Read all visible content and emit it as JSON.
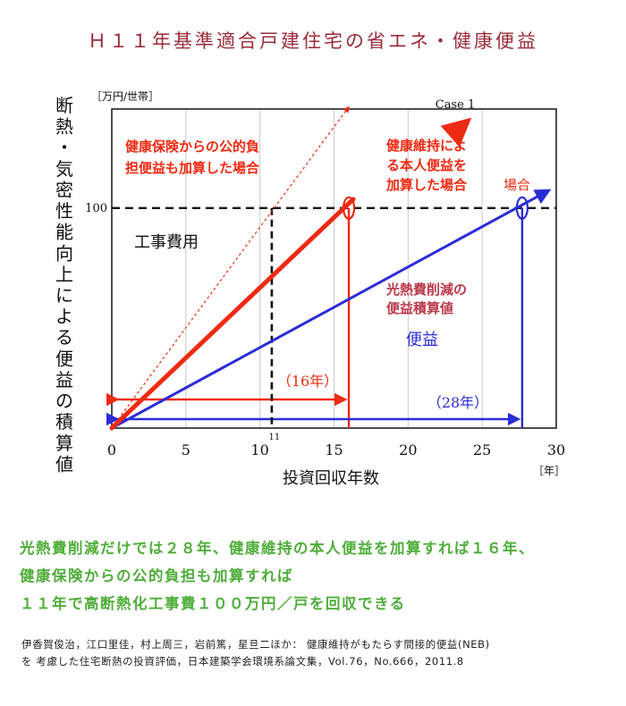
{
  "title": "Ｈ１１年基準適合戸建住宅の省エネ・健康便益",
  "chart_data": {
    "type": "line",
    "title": "Ｈ１１年基準適合戸建住宅の省エネ・健康便益",
    "ylabel": "断熱・気密性能向上による便益の積算値",
    "yunit": "［万円/世帯］",
    "xlabel": "投資回収年数",
    "xunit": "［年］",
    "xlim": [
      0,
      30
    ],
    "ylim": [
      0,
      145
    ],
    "xticks": [
      "0",
      "5",
      "10",
      "15",
      "20",
      "25",
      "30"
    ],
    "yticks": [
      "100"
    ],
    "extra_xtick": "11",
    "grid": "vertical",
    "series": [
      {
        "name": "",
        "color": "#2b2bd8",
        "style": "solid-arrow",
        "x": [
          0,
          29.5
        ],
        "y": [
          0,
          108
        ]
      },
      {
        "name": "",
        "color": "#ee2a12",
        "style": "solid-thick",
        "x": [
          0,
          16.3
        ],
        "y": [
          0,
          104
        ]
      },
      {
        "name": "",
        "color": "#ee2a12",
        "style": "dotted",
        "x": [
          0,
          16.0
        ],
        "y": [
          0,
          146
        ]
      },
      {
        "name": "",
        "color": "#ee2a12",
        "style": "arrow",
        "x": [
          23.7,
          24.1
        ],
        "y": [
          137,
          140
        ]
      }
    ],
    "reference_line": {
      "label": "工事費用",
      "y": 100,
      "color": "#111111"
    },
    "paybacks": [
      {
        "label": "（16年）",
        "x": 16,
        "color": "#ee2a12"
      },
      {
        "label": "（28年）",
        "x": 27.7,
        "color": "#2b2bd8"
      },
      {
        "label": "",
        "x": 10.8,
        "color": "#111111"
      }
    ],
    "annotations": {
      "case": "Case 1",
      "public_benefit": [
        "健康保険からの公的負",
        "担便益も加算した場合"
      ],
      "health_benefit": [
        "健康維持によ",
        "る本人便益を",
        "加算した場合"
      ],
      "case_suffix": "場合",
      "energy_benefit": [
        "光熱費削減の",
        "便益積算値"
      ],
      "benefit": "便益"
    }
  },
  "summary": [
    "光熱費削減だけでは２８年、健康維持の本人便益を加算すれば１６年、",
    "健康保険からの公的負担も加算すれば",
    "１１年で高断熱化工事費１００万円／戸を回収できる"
  ],
  "citation": [
    "伊香賀俊治，江口里佳，村上周三，岩前篤，星旦二ほか： 健康維持がもたらす間接的便益(NEB)",
    "を 考慮した住宅断熱の投資評価，日本建築学会環境系論文集，Vol.76，No.666，2011.8"
  ]
}
